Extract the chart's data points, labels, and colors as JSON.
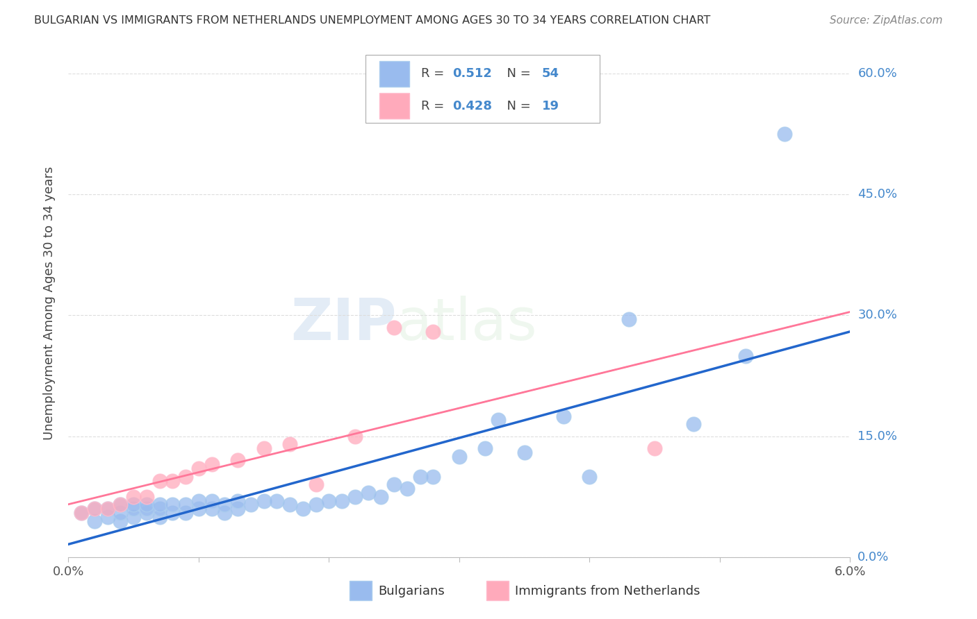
{
  "title": "BULGARIAN VS IMMIGRANTS FROM NETHERLANDS UNEMPLOYMENT AMONG AGES 30 TO 34 YEARS CORRELATION CHART",
  "source": "Source: ZipAtlas.com",
  "ylabel": "Unemployment Among Ages 30 to 34 years",
  "legend_blue_R": "0.512",
  "legend_blue_N": "54",
  "legend_pink_R": "0.428",
  "legend_pink_N": "19",
  "legend_label_blue": "Bulgarians",
  "legend_label_pink": "Immigrants from Netherlands",
  "blue_scatter_color": "#99BBEE",
  "pink_scatter_color": "#FFAABB",
  "blue_edge_color": "#AACCEE",
  "pink_edge_color": "#FFBBCC",
  "blue_line_color": "#2266CC",
  "pink_line_color": "#FF7799",
  "right_axis_color": "#4488CC",
  "watermark_color": "#DDEEFF",
  "blue_x": [
    0.001,
    0.002,
    0.002,
    0.003,
    0.003,
    0.004,
    0.004,
    0.004,
    0.005,
    0.005,
    0.005,
    0.006,
    0.006,
    0.006,
    0.007,
    0.007,
    0.007,
    0.008,
    0.008,
    0.009,
    0.009,
    0.01,
    0.01,
    0.011,
    0.011,
    0.012,
    0.012,
    0.013,
    0.013,
    0.014,
    0.015,
    0.016,
    0.017,
    0.018,
    0.019,
    0.02,
    0.021,
    0.022,
    0.023,
    0.024,
    0.025,
    0.026,
    0.027,
    0.028,
    0.03,
    0.032,
    0.033,
    0.035,
    0.038,
    0.04,
    0.043,
    0.048,
    0.052,
    0.055
  ],
  "blue_y": [
    0.055,
    0.045,
    0.06,
    0.05,
    0.06,
    0.045,
    0.055,
    0.065,
    0.05,
    0.06,
    0.065,
    0.055,
    0.06,
    0.065,
    0.05,
    0.06,
    0.065,
    0.055,
    0.065,
    0.055,
    0.065,
    0.06,
    0.07,
    0.06,
    0.07,
    0.055,
    0.065,
    0.06,
    0.07,
    0.065,
    0.07,
    0.07,
    0.065,
    0.06,
    0.065,
    0.07,
    0.07,
    0.075,
    0.08,
    0.075,
    0.09,
    0.085,
    0.1,
    0.1,
    0.125,
    0.135,
    0.17,
    0.13,
    0.175,
    0.1,
    0.295,
    0.165,
    0.25,
    0.525
  ],
  "pink_x": [
    0.001,
    0.002,
    0.003,
    0.004,
    0.005,
    0.006,
    0.007,
    0.008,
    0.009,
    0.01,
    0.011,
    0.013,
    0.015,
    0.017,
    0.019,
    0.022,
    0.025,
    0.028,
    0.045
  ],
  "pink_y": [
    0.055,
    0.06,
    0.06,
    0.065,
    0.075,
    0.075,
    0.095,
    0.095,
    0.1,
    0.11,
    0.115,
    0.12,
    0.135,
    0.14,
    0.09,
    0.15,
    0.285,
    0.28,
    0.135
  ],
  "xmin": 0.0,
  "xmax": 0.06,
  "ymin": 0.0,
  "ymax": 0.63,
  "yticks": [
    0.0,
    0.15,
    0.3,
    0.45,
    0.6
  ],
  "yticklabels": [
    "0.0%",
    "15.0%",
    "30.0%",
    "45.0%",
    "60.0%"
  ],
  "xtick_positions": [
    0.0,
    0.01,
    0.02,
    0.03,
    0.04,
    0.05,
    0.06
  ],
  "xtick_labels_show": [
    "0.0%",
    "",
    "",
    "",
    "",
    "",
    "6.0%"
  ]
}
